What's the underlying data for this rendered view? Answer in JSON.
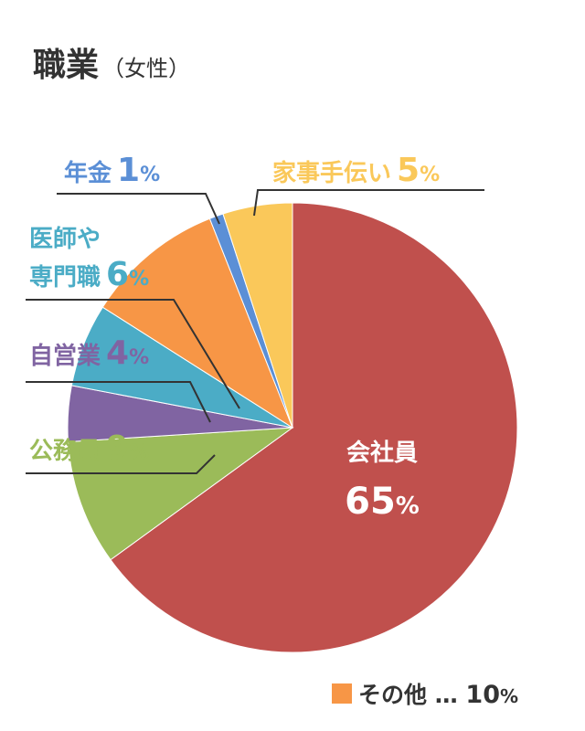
{
  "title": "職業",
  "subtitle": "（女性）",
  "chart_data": {
    "type": "pie",
    "title": "職業（女性）",
    "slices": [
      {
        "label": "会社員",
        "value": 65,
        "color": "#c0504d"
      },
      {
        "label": "公務員",
        "value": 9,
        "color": "#9bbb59"
      },
      {
        "label": "自営業",
        "value": 4,
        "color": "#8064a2"
      },
      {
        "label": "医師や専門職",
        "value": 6,
        "color": "#4bacc6"
      },
      {
        "label": "その他",
        "value": 10,
        "color": "#f79646"
      },
      {
        "label": "年金",
        "value": 1,
        "color": "#5b8fd6"
      },
      {
        "label": "家事手伝い",
        "value": 5,
        "color": "#fac85a"
      }
    ],
    "legend_note": {
      "label": "その他 … ",
      "value": "10",
      "unit": "%"
    }
  }
}
